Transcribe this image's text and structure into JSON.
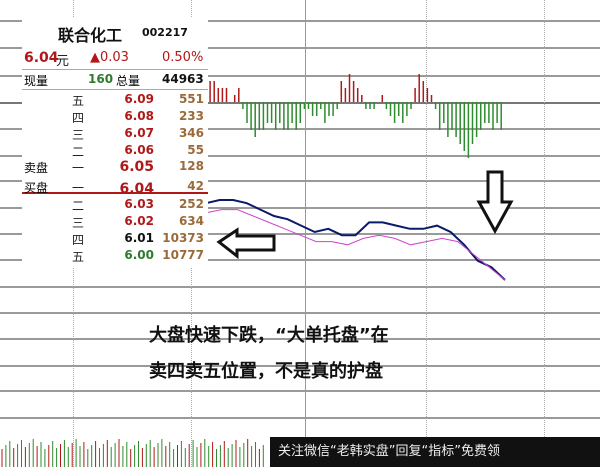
{
  "stock": {
    "name": "联合化工",
    "code": "002217",
    "price": "6.04",
    "price_unit": "元",
    "change": "▲0.03",
    "change_pct": "0.50%",
    "current_vol_label": "现量",
    "current_vol": "160",
    "total_vol_label": "总量",
    "total_vol": "44963"
  },
  "order_book": {
    "sell_label": "卖盘",
    "buy_label": "买盘",
    "sells": [
      {
        "level": "五",
        "price": "6.09",
        "volume": "551"
      },
      {
        "level": "四",
        "price": "6.08",
        "volume": "233"
      },
      {
        "level": "三",
        "price": "6.07",
        "volume": "346"
      },
      {
        "level": "二",
        "price": "6.06",
        "volume": "55"
      },
      {
        "level": "一",
        "price": "6.05",
        "volume": "128"
      }
    ],
    "buys": [
      {
        "level": "一",
        "price": "6.04",
        "volume": "42"
      },
      {
        "level": "二",
        "price": "6.03",
        "volume": "252"
      },
      {
        "level": "三",
        "price": "6.02",
        "volume": "634"
      },
      {
        "level": "四",
        "price": "6.01",
        "volume": "10373"
      },
      {
        "level": "五",
        "price": "6.00",
        "volume": "10777"
      }
    ]
  },
  "annotation": {
    "line1": "大盘快速下跌，“大单托盘”在",
    "line2": "卖四卖五位置，不是真的护盘"
  },
  "watermark": "关注微信“老韩实盘”回复“指标”免费领",
  "colors": {
    "up": "#b01818",
    "down": "#2e8b2e",
    "price_line": "#0a1a6a",
    "avg_line": "#cc44cc"
  },
  "chart_data": {
    "type": "line",
    "histogram": [
      2,
      3,
      3,
      2,
      2,
      2,
      0,
      1,
      2,
      -1,
      -3,
      -4,
      -5,
      -4,
      -4,
      -3,
      -3,
      -4,
      -3,
      -4,
      -4,
      -3,
      -4,
      -3,
      -1,
      -1,
      -2,
      -2,
      -1,
      -3,
      -2,
      -2,
      -1,
      3,
      2,
      4,
      3,
      2,
      1,
      -1,
      -1,
      -1,
      0,
      1,
      -1,
      -2,
      -3,
      -2,
      -3,
      -2,
      -1,
      2,
      4,
      3,
      2,
      1,
      -1,
      -4,
      -3,
      -5,
      -4,
      -5,
      -6,
      -7,
      -8,
      -6,
      -5,
      -4,
      -3,
      -3,
      -4,
      -3,
      -4
    ],
    "price_series": [
      6.12,
      6.13,
      6.13,
      6.12,
      6.1,
      6.08,
      6.07,
      6.05,
      6.03,
      6.04,
      6.02,
      6.02,
      6.06,
      6.06,
      6.05,
      6.04,
      6.04,
      6.05,
      6.03,
      5.99,
      5.94,
      5.92,
      5.88
    ],
    "avg_series": [
      6.09,
      6.1,
      6.1,
      6.08,
      6.06,
      6.04,
      6.02,
      6.0,
      6.0,
      5.99,
      6.01,
      6.02,
      6.01,
      5.99,
      6.0,
      6.01,
      6.0,
      5.96,
      5.92,
      5.88
    ]
  }
}
